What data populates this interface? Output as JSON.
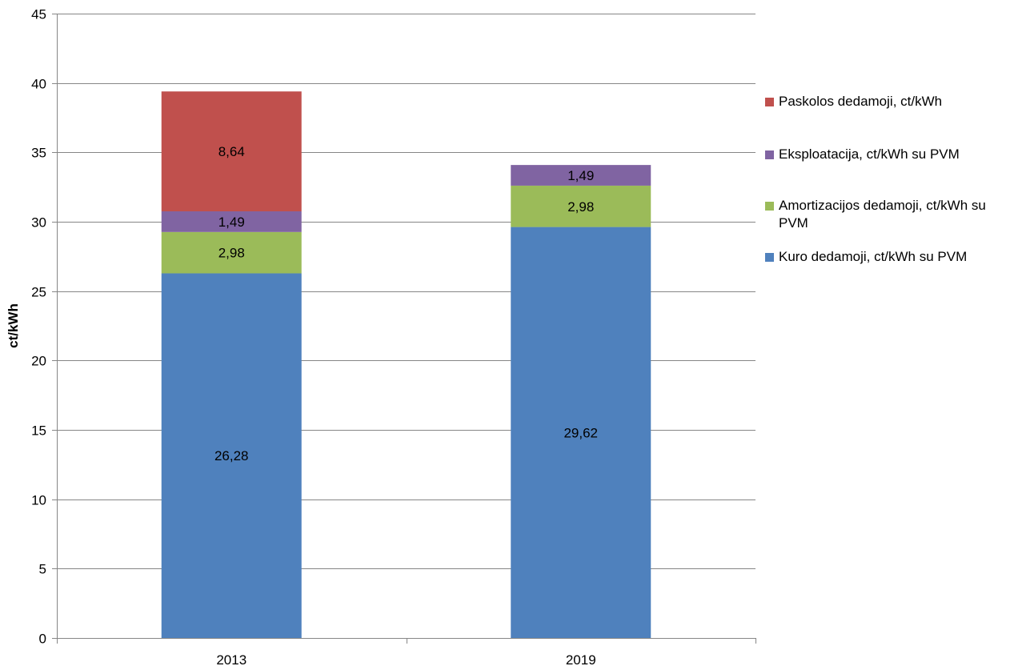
{
  "chart_data": {
    "type": "bar",
    "stacked": true,
    "categories": [
      "2013",
      "2019"
    ],
    "ylabel": "ct/kWh",
    "xlabel": "",
    "ylim": [
      0,
      45
    ],
    "yticks": [
      0,
      5,
      10,
      15,
      20,
      25,
      30,
      35,
      40,
      45
    ],
    "grid": true,
    "legend_position": "right",
    "series": [
      {
        "name": "Kuro dedamoji, ct/kWh su PVM",
        "color": "#4F81BD",
        "values": [
          26.28,
          29.62
        ],
        "labels": [
          "26,28",
          "29,62"
        ]
      },
      {
        "name": "Amortizacijos dedamoji, ct/kWh su PVM",
        "color": "#9BBB59",
        "values": [
          2.98,
          2.98
        ],
        "labels": [
          "2,98",
          "2,98"
        ]
      },
      {
        "name": "Eksploatacija, ct/kWh su PVM",
        "color": "#8064A2",
        "values": [
          1.49,
          1.49
        ],
        "labels": [
          "1,49",
          "1,49"
        ]
      },
      {
        "name": "Paskolos dedamoji, ct/kWh",
        "color": "#C0504D",
        "values": [
          8.64,
          null
        ],
        "labels": [
          "8,64",
          ""
        ]
      }
    ]
  }
}
